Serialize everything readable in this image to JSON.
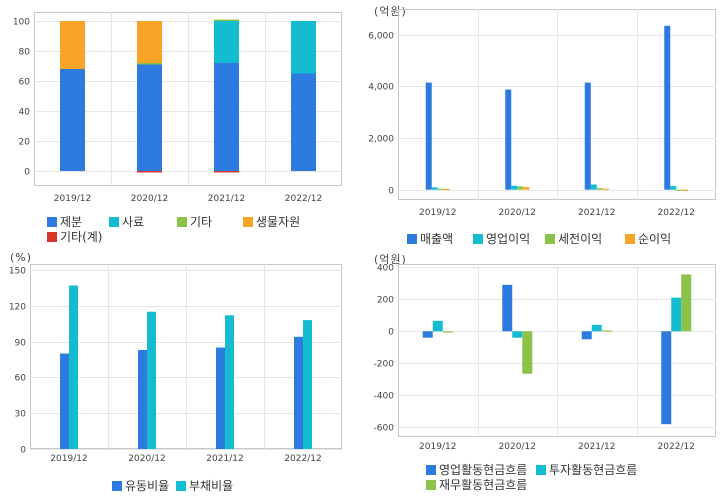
{
  "colors": {
    "blue": "#2e7be0",
    "teal": "#13bcd0",
    "green": "#8bc34a",
    "orange": "#f8a527",
    "red": "#d9342b",
    "frame": "#c7c7c7",
    "grid": "#e6e6e6"
  },
  "chart_data": [
    {
      "id": "composition",
      "type": "bar",
      "stacked": true,
      "unit": "",
      "categories": [
        "2019/12",
        "2020/12",
        "2021/12",
        "2022/12"
      ],
      "ylim": [
        -10,
        106
      ],
      "yticks": [
        0,
        20,
        40,
        60,
        80,
        100
      ],
      "series": [
        {
          "name": "제분",
          "color": "blue",
          "values": [
            68,
            71,
            72,
            65
          ]
        },
        {
          "name": "사료",
          "color": "teal",
          "values": [
            0,
            0,
            28,
            35
          ]
        },
        {
          "name": "기타",
          "color": "green",
          "values": [
            0,
            1,
            1,
            0
          ]
        },
        {
          "name": "생물자원",
          "color": "orange",
          "values": [
            32,
            28,
            0,
            0
          ]
        },
        {
          "name": "기타(계)",
          "color": "red",
          "values": [
            0,
            -1,
            -1,
            0
          ]
        }
      ],
      "legend_rows": [
        [
          {
            "label": "제분",
            "color": "blue"
          },
          {
            "label": "사료",
            "color": "teal"
          },
          {
            "label": "기타",
            "color": "green"
          },
          {
            "label": "생물자원",
            "color": "orange"
          }
        ],
        [
          {
            "label": "기타(계)",
            "color": "red"
          }
        ]
      ]
    },
    {
      "id": "income",
      "type": "bar",
      "unit": "(억원)",
      "categories": [
        "2019/12",
        "2020/12",
        "2021/12",
        "2022/12"
      ],
      "ylim": [
        -400,
        7000
      ],
      "yticks": [
        0,
        2000,
        4000,
        6000
      ],
      "ytick_labels": [
        "0",
        "2,000",
        "4,000",
        "6,000"
      ],
      "series": [
        {
          "name": "매출액",
          "color": "blue",
          "values": [
            4150,
            3880,
            4150,
            6350
          ]
        },
        {
          "name": "영업이익",
          "color": "teal",
          "values": [
            90,
            150,
            200,
            140
          ]
        },
        {
          "name": "세전이익",
          "color": "green",
          "values": [
            40,
            130,
            60,
            -40
          ]
        },
        {
          "name": "순이익",
          "color": "orange",
          "values": [
            30,
            100,
            40,
            -30
          ]
        }
      ],
      "legend_rows": [
        [
          {
            "label": "매출액",
            "color": "blue"
          },
          {
            "label": "영업이익",
            "color": "teal"
          },
          {
            "label": "세전이익",
            "color": "green"
          },
          {
            "label": "순이익",
            "color": "orange"
          }
        ]
      ]
    },
    {
      "id": "ratios",
      "type": "bar",
      "unit": "(%)",
      "categories": [
        "2019/12",
        "2020/12",
        "2021/12",
        "2022/12"
      ],
      "ylim": [
        0,
        155
      ],
      "yticks": [
        0,
        30,
        60,
        90,
        120,
        150
      ],
      "series": [
        {
          "name": "유동비율",
          "color": "blue",
          "values": [
            80,
            83,
            85,
            94
          ]
        },
        {
          "name": "부채비율",
          "color": "teal",
          "values": [
            137,
            115,
            112,
            108
          ]
        }
      ],
      "legend_rows": [
        [
          {
            "label": "유동비율",
            "color": "blue"
          },
          {
            "label": "부채비율",
            "color": "teal"
          }
        ]
      ]
    },
    {
      "id": "cashflow",
      "type": "bar",
      "unit": "(억원)",
      "categories": [
        "2019/12",
        "2020/12",
        "2021/12",
        "2022/12"
      ],
      "ylim": [
        -660,
        420
      ],
      "yticks": [
        -600,
        -400,
        -200,
        0,
        200,
        400
      ],
      "series": [
        {
          "name": "영업활동현금흐름",
          "color": "blue",
          "values": [
            -40,
            290,
            -50,
            -580
          ]
        },
        {
          "name": "투자활동현금흐름",
          "color": "teal",
          "values": [
            65,
            -40,
            40,
            210
          ]
        },
        {
          "name": "재무활동현금흐름",
          "color": "green",
          "values": [
            -5,
            -265,
            5,
            355
          ]
        }
      ],
      "legend_rows": [
        [
          {
            "label": "영업활동현금흐름",
            "color": "blue"
          },
          {
            "label": "투자활동현금흐름",
            "color": "teal"
          }
        ],
        [
          {
            "label": "재무활동현금흐름",
            "color": "green"
          }
        ]
      ]
    }
  ]
}
